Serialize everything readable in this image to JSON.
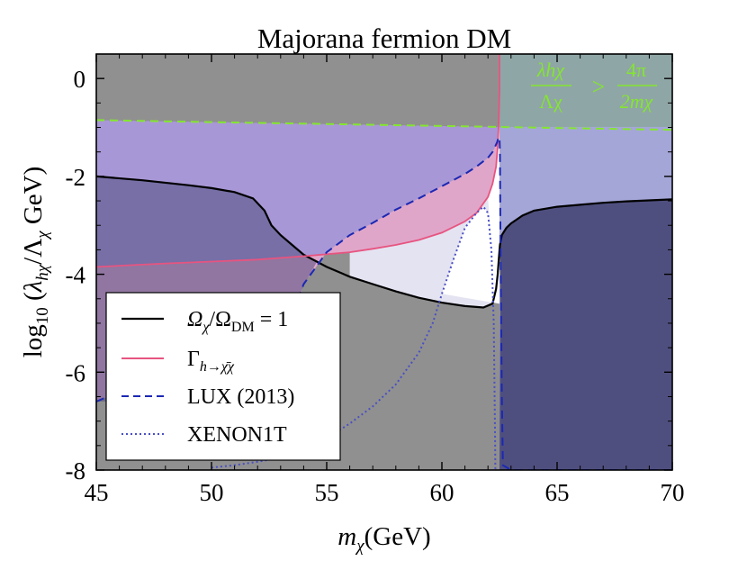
{
  "chart_data": {
    "type": "line",
    "title": "Majorana fermion DM",
    "xlabel": "m_χ (GeV)",
    "ylabel": "log10 (λhχ / Λχ GeV)",
    "xlim": [
      45,
      70
    ],
    "ylim": [
      -8,
      0.5
    ],
    "xticks": [
      45,
      50,
      55,
      60,
      65,
      70
    ],
    "yticks": [
      0,
      -2,
      -4,
      -6,
      -8
    ],
    "xtick_labels": [
      "45",
      "50",
      "55",
      "60",
      "65",
      "70"
    ],
    "ytick_labels": [
      "0",
      "-2",
      "-4",
      "-6",
      "-8"
    ],
    "grid": false,
    "legend_position": "bottom-left",
    "annotation": {
      "lhs_num": "λhχ",
      "lhs_den": "Λχ",
      "op": ">",
      "rhs_num": "4π",
      "rhs_den": "2mχ",
      "color": "#84e62f"
    },
    "series": [
      {
        "name": "Ω_χ/Ω_DM = 1",
        "style": "solid",
        "color": "#000000",
        "x": [
          45,
          47,
          49,
          50,
          51,
          51.8,
          52.3,
          52.6,
          53,
          53.5,
          54,
          55,
          56,
          57,
          58,
          59,
          60,
          61,
          61.8,
          62.2,
          62.35,
          62.42,
          62.47,
          62.52,
          62.6,
          62.8,
          63,
          63.5,
          64,
          65,
          66,
          67,
          68,
          69,
          70
        ],
        "y": [
          -2.0,
          -2.08,
          -2.18,
          -2.24,
          -2.32,
          -2.45,
          -2.7,
          -3.0,
          -3.2,
          -3.4,
          -3.6,
          -3.85,
          -4.05,
          -4.2,
          -4.35,
          -4.48,
          -4.58,
          -4.65,
          -4.68,
          -4.6,
          -4.3,
          -4.0,
          -3.7,
          -3.4,
          -3.2,
          -3.05,
          -2.96,
          -2.8,
          -2.7,
          -2.62,
          -2.58,
          -2.54,
          -2.51,
          -2.49,
          -2.47
        ]
      },
      {
        "name": "Γ_{h→χ̄χ}",
        "style": "solid",
        "color": "#e75480",
        "x": [
          45,
          48,
          50,
          52,
          54,
          56,
          57,
          58,
          59,
          60,
          61,
          61.5,
          62,
          62.2,
          62.35,
          62.42,
          62.46,
          62.48,
          62.5,
          62.5
        ],
        "y": [
          -3.85,
          -3.78,
          -3.74,
          -3.7,
          -3.63,
          -3.55,
          -3.48,
          -3.4,
          -3.3,
          -3.15,
          -2.92,
          -2.75,
          -2.42,
          -2.15,
          -1.8,
          -1.4,
          -1.0,
          -0.6,
          -0.2,
          0.5
        ]
      },
      {
        "name": "LUX (2013)",
        "style": "dashed",
        "color": "#1c28b4",
        "x": [
          45,
          48,
          50,
          52,
          53,
          53.6,
          54,
          55,
          56,
          57,
          58,
          59,
          60,
          61,
          61.5,
          62,
          62.2,
          62.3,
          62.4,
          62.45,
          62.5,
          62.52,
          62.55,
          62.6,
          62.65,
          63,
          64,
          66,
          68,
          70
        ],
        "y": [
          -6.6,
          -6.0,
          -5.6,
          -5.2,
          -4.95,
          -4.7,
          -4.2,
          -3.55,
          -3.2,
          -2.95,
          -2.68,
          -2.45,
          -2.2,
          -1.95,
          -1.8,
          -1.62,
          -1.5,
          -1.4,
          -1.3,
          -1.22,
          -1.2,
          -1.5,
          -4.0,
          -6.5,
          -7.9,
          -8.0,
          -8.0,
          -8.0,
          -8.0,
          -8.0
        ]
      },
      {
        "name": "XENON1T",
        "style": "dotted",
        "color": "#4a4fc4",
        "x": [
          50,
          51,
          52,
          53,
          54,
          55,
          56,
          57,
          58,
          59,
          59.6,
          60,
          60.5,
          61,
          61.5,
          61.8,
          62.0,
          62.15,
          62.25,
          62.3,
          62.32
        ],
        "y": [
          -7.95,
          -7.9,
          -7.83,
          -7.75,
          -7.6,
          -7.35,
          -7.05,
          -6.7,
          -6.25,
          -5.6,
          -5.0,
          -4.4,
          -3.7,
          -3.05,
          -2.75,
          -2.62,
          -2.75,
          -3.5,
          -5.0,
          -7.0,
          -8.0
        ]
      },
      {
        "name": "perturbativity bound",
        "style": "dashed",
        "color": "#84e62f",
        "x": [
          45,
          50,
          55,
          60,
          62.5,
          65,
          70
        ],
        "y": [
          -0.85,
          -0.89,
          -0.93,
          -0.97,
          -0.99,
          -1.01,
          -1.05
        ]
      }
    ],
    "legend": [
      {
        "label_main": "Ω",
        "label_sub": "χ",
        "label_mid": "/Ω",
        "label_sub2": "DM",
        "label_end": " = 1",
        "style": "solid",
        "color": "#000000"
      },
      {
        "label_main": "Γ",
        "label_sub": "h→χ̄χ",
        "style": "solid",
        "color": "#e75480"
      },
      {
        "label_main": "LUX (2013)",
        "style": "dashed",
        "color": "#1c28b4"
      },
      {
        "label_main": "XENON1T",
        "style": "dotted",
        "color": "#4a4fc4"
      }
    ],
    "region_colors": {
      "perturbative_excluded": "#8a8a99",
      "relic_overabundant": "#4f4f7f",
      "lux_excluded": "#a897d6",
      "invisible_width_excluded": "#e0a6c9",
      "xenon1t_reach": "#e4e3f1",
      "lower_band": "#909090",
      "allowed": "#ffffff"
    }
  }
}
